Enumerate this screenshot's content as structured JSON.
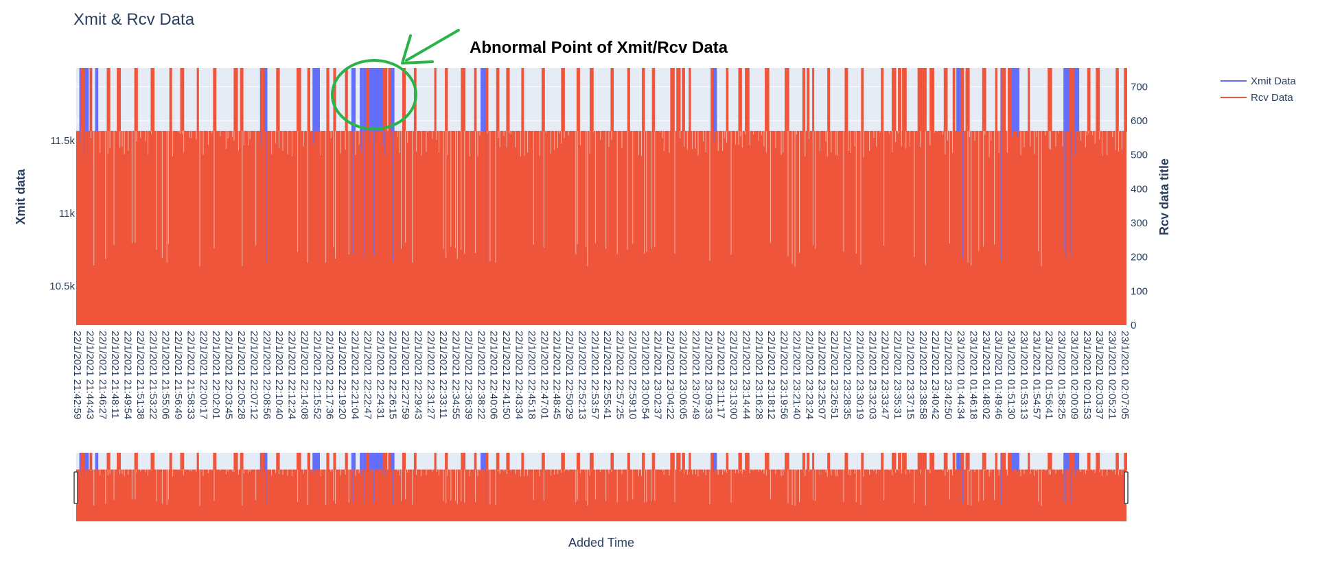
{
  "chart_data": {
    "type": "bar",
    "title": "Xmit & Rcv Data",
    "xlabel": "Added Time",
    "y_left_label": "Xmit data",
    "y_right_label": "Rcv data title",
    "y_left_ticks": [
      "10.5k",
      "11k",
      "11.5k"
    ],
    "y_left_tick_values": [
      10500,
      11000,
      11500
    ],
    "y_left_range": [
      10230,
      12000
    ],
    "y_right_ticks": [
      "0",
      "100",
      "200",
      "300",
      "400",
      "500",
      "600",
      "700"
    ],
    "y_right_tick_values": [
      0,
      100,
      200,
      300,
      400,
      500,
      600,
      700
    ],
    "y_right_range": [
      0,
      755
    ],
    "grid": true,
    "legend_position": "top-right",
    "series": [
      {
        "name": "Xmit Data",
        "color": "#636efa",
        "axis": "left"
      },
      {
        "name": "Rcv Data",
        "color": "#ef553b",
        "axis": "right"
      }
    ],
    "x_ticks": [
      "22/1/2021 21:42:59",
      "22/1/2021 21:44:43",
      "22/1/2021 21:46:27",
      "22/1/2021 21:48:11",
      "22/1/2021 21:49:54",
      "22/1/2021 21:51:38",
      "22/1/2021 21:53:22",
      "22/1/2021 21:55:06",
      "22/1/2021 21:56:49",
      "22/1/2021 21:58:33",
      "22/1/2021 22:00:17",
      "22/1/2021 22:02:01",
      "22/1/2021 22:03:45",
      "22/1/2021 22:05:28",
      "22/1/2021 22:07:12",
      "22/1/2021 22:08:56",
      "22/1/2021 22:10:40",
      "22/1/2021 22:12:24",
      "22/1/2021 22:14:08",
      "22/1/2021 22:15:52",
      "22/1/2021 22:17:36",
      "22/1/2021 22:19:20",
      "22/1/2021 22:21:04",
      "22/1/2021 22:22:47",
      "22/1/2021 22:24:31",
      "22/1/2021 22:26:15",
      "22/1/2021 22:27:59",
      "22/1/2021 22:29:43",
      "22/1/2021 22:31:27",
      "22/1/2021 22:33:11",
      "22/1/2021 22:34:55",
      "22/1/2021 22:36:39",
      "22/1/2021 22:38:22",
      "22/1/2021 22:40:06",
      "22/1/2021 22:41:50",
      "22/1/2021 22:43:34",
      "22/1/2021 22:45:18",
      "22/1/2021 22:47:01",
      "22/1/2021 22:48:45",
      "22/1/2021 22:50:29",
      "22/1/2021 22:52:13",
      "22/1/2021 22:53:57",
      "22/1/2021 22:55:41",
      "22/1/2021 22:57:25",
      "22/1/2021 22:59:10",
      "22/1/2021 23:00:54",
      "22/1/2021 23:02:37",
      "22/1/2021 23:04:22",
      "22/1/2021 23:06:05",
      "22/1/2021 23:07:49",
      "22/1/2021 23:09:33",
      "22/1/2021 23:11:17",
      "22/1/2021 23:13:00",
      "22/1/2021 23:14:44",
      "22/1/2021 23:16:28",
      "22/1/2021 23:18:12",
      "22/1/2021 23:19:56",
      "22/1/2021 23:21:40",
      "22/1/2021 23:23:24",
      "22/1/2021 23:25:07",
      "22/1/2021 23:26:51",
      "22/1/2021 23:28:35",
      "22/1/2021 23:30:19",
      "22/1/2021 23:32:03",
      "22/1/2021 23:33:47",
      "22/1/2021 23:35:31",
      "22/1/2021 23:37:15",
      "22/1/2021 23:38:58",
      "22/1/2021 23:40:42",
      "22/1/2021 23:42:50",
      "23/1/2021 01:44:34",
      "23/1/2021 01:46:18",
      "23/1/2021 01:48:02",
      "23/1/2021 01:49:46",
      "23/1/2021 01:51:30",
      "23/1/2021 01:53:13",
      "23/1/2021 01:54:57",
      "23/1/2021 01:56:41",
      "23/1/2021 01:58:25",
      "23/1/2021 02:00:09",
      "23/1/2021 02:01:53",
      "23/1/2021 02:03:37",
      "23/1/2021 02:05:21",
      "23/1/2021 02:07:05"
    ],
    "rcv_typical_value": 570,
    "rcv_range": [
      0,
      755
    ],
    "xmit_typical_value": 11500,
    "xmit_abnormal_ranges": [
      [
        0.003,
        0.012
      ],
      [
        0.018,
        0.021
      ],
      [
        0.175,
        0.182
      ],
      [
        0.225,
        0.232
      ],
      [
        0.262,
        0.266
      ],
      [
        0.27,
        0.273
      ],
      [
        0.273,
        0.295
      ],
      [
        0.298,
        0.303
      ],
      [
        0.385,
        0.39
      ],
      [
        0.605,
        0.61
      ],
      [
        0.838,
        0.845
      ],
      [
        0.88,
        0.884
      ],
      [
        0.89,
        0.898
      ],
      [
        0.94,
        0.955
      ]
    ],
    "annotation": "Abnormal Point of Xmit/Rcv Data"
  }
}
